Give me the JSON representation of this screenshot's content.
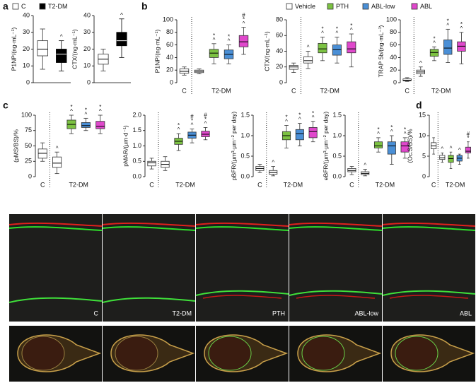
{
  "panels": [
    "a",
    "b",
    "c",
    "d"
  ],
  "legend_a": [
    {
      "name": "C",
      "color": "#ffffff"
    },
    {
      "name": "T2-DM",
      "color": "#000000"
    }
  ],
  "legend_b": [
    {
      "name": "Vehicle",
      "color": "#ffffff"
    },
    {
      "name": "PTH",
      "color": "#7cc242"
    },
    {
      "name": "ABL-low",
      "color": "#4a8fd6"
    },
    {
      "name": "ABL",
      "color": "#e048cc"
    }
  ],
  "chart_data": [
    {
      "type": "box",
      "ylabel": "P1NP/(ng·mL⁻¹)",
      "ylim": [
        0,
        40
      ],
      "yticks": [
        0,
        10,
        20,
        30,
        40
      ],
      "series": [
        {
          "color": "#ffffff",
          "stats": [
            8,
            16,
            20,
            25,
            32
          ],
          "marks": []
        },
        {
          "color": "#000000",
          "stats": [
            7,
            12,
            17,
            20,
            25
          ],
          "marks": [
            "^"
          ]
        }
      ]
    },
    {
      "type": "box",
      "ylabel": "CTX/(ng·mL⁻¹)",
      "ylim": [
        0,
        40
      ],
      "yticks": [
        0,
        10,
        20,
        30,
        40
      ],
      "series": [
        {
          "color": "#ffffff",
          "stats": [
            7,
            11,
            14,
            17,
            20
          ],
          "marks": []
        },
        {
          "color": "#000000",
          "stats": [
            15,
            22,
            25,
            30,
            38
          ],
          "marks": [
            "^"
          ]
        }
      ]
    },
    {
      "type": "box",
      "ylabel": "P1NP/(ng·mL⁻¹)",
      "ylim": [
        0,
        100
      ],
      "yticks": [
        0,
        20,
        40,
        60,
        80,
        100
      ],
      "categories": [
        "C",
        "T2-DM"
      ],
      "series": [
        {
          "category": 0,
          "color": "#ffffff",
          "stats": [
            12,
            15,
            18,
            22,
            25
          ],
          "marks": []
        },
        {
          "category": 1,
          "color": "#ffffff",
          "stats": [
            14,
            16,
            18,
            20,
            22
          ],
          "marks": []
        },
        {
          "category": 1,
          "color": "#7cc242",
          "stats": [
            30,
            40,
            47,
            53,
            62
          ],
          "marks": [
            "^",
            "*"
          ]
        },
        {
          "category": 1,
          "color": "#4a8fd6",
          "stats": [
            30,
            38,
            45,
            52,
            60
          ],
          "marks": [
            "^",
            "*"
          ]
        },
        {
          "category": 1,
          "color": "#e048cc",
          "stats": [
            45,
            57,
            65,
            75,
            88
          ],
          "marks": [
            "^",
            "*",
            "#"
          ]
        }
      ]
    },
    {
      "type": "box",
      "ylabel": "CTX/(ng·mL⁻¹)",
      "ylim": [
        0,
        80
      ],
      "yticks": [
        0,
        20,
        40,
        60,
        80
      ],
      "categories": [
        "C",
        "T2-DM"
      ],
      "series": [
        {
          "category": 0,
          "color": "#ffffff",
          "stats": [
            13,
            17,
            20,
            22,
            25
          ],
          "marks": []
        },
        {
          "category": 1,
          "color": "#ffffff",
          "stats": [
            18,
            25,
            28,
            33,
            40
          ],
          "marks": [
            "^"
          ]
        },
        {
          "category": 1,
          "color": "#7cc242",
          "stats": [
            28,
            38,
            43,
            50,
            58
          ],
          "marks": [
            "^",
            "*"
          ]
        },
        {
          "category": 1,
          "color": "#4a8fd6",
          "stats": [
            25,
            35,
            42,
            48,
            58
          ],
          "marks": [
            "^",
            "*"
          ]
        },
        {
          "category": 1,
          "color": "#e048cc",
          "stats": [
            20,
            38,
            43,
            52,
            62
          ],
          "marks": [
            "^",
            "*"
          ]
        }
      ]
    },
    {
      "type": "box",
      "ylabel": "TRAP 5b/(ng·mL⁻¹)",
      "ylim": [
        0,
        100
      ],
      "yticks": [
        0,
        20,
        40,
        60,
        80,
        100
      ],
      "categories": [
        "C",
        "T2-DM"
      ],
      "series": [
        {
          "category": 0,
          "color": "#ffffff",
          "stats": [
            2,
            3,
            4,
            6,
            8
          ],
          "marks": []
        },
        {
          "category": 1,
          "color": "#ffffff",
          "stats": [
            10,
            14,
            17,
            20,
            25
          ],
          "marks": [
            "^"
          ]
        },
        {
          "category": 1,
          "color": "#7cc242",
          "stats": [
            35,
            42,
            48,
            53,
            57
          ],
          "marks": [
            "^",
            "*"
          ]
        },
        {
          "category": 1,
          "color": "#4a8fd6",
          "stats": [
            32,
            45,
            55,
            68,
            85
          ],
          "marks": [
            "^",
            "*"
          ]
        },
        {
          "category": 1,
          "color": "#e048cc",
          "stats": [
            30,
            50,
            58,
            65,
            80
          ],
          "marks": [
            "^",
            "*"
          ]
        }
      ]
    },
    {
      "type": "box",
      "ylabel": "(pMS/BS)/%",
      "ylim": [
        0,
        100
      ],
      "yticks": [
        0,
        25,
        50,
        75,
        100
      ],
      "categories": [
        "C",
        "T2-DM"
      ],
      "series": [
        {
          "category": 0,
          "color": "#ffffff",
          "stats": [
            25,
            30,
            38,
            45,
            55
          ],
          "marks": []
        },
        {
          "category": 1,
          "color": "#ffffff",
          "stats": [
            5,
            15,
            22,
            32,
            40
          ],
          "marks": [
            "^"
          ]
        },
        {
          "category": 1,
          "color": "#7cc242",
          "stats": [
            70,
            78,
            85,
            92,
            100
          ],
          "marks": [
            "^",
            "*"
          ]
        },
        {
          "category": 1,
          "color": "#4a8fd6",
          "stats": [
            75,
            80,
            83,
            88,
            95
          ],
          "marks": [
            "^",
            "*"
          ]
        },
        {
          "category": 1,
          "color": "#e048cc",
          "stats": [
            70,
            78,
            82,
            90,
            100
          ],
          "marks": [
            "^",
            "*"
          ]
        }
      ]
    },
    {
      "type": "box",
      "ylabel": "pMAR/(µm·d⁻¹)",
      "ylim": [
        0,
        2
      ],
      "yticks": [
        {
          "value": 0,
          "label": "0.0"
        },
        0.5,
        {
          "value": 1,
          "label": "1.0"
        },
        1.5,
        {
          "value": 2,
          "label": "2.0"
        }
      ],
      "categories": [
        "C",
        "T2-DM"
      ],
      "series": [
        {
          "category": 0,
          "color": "#ffffff",
          "stats": [
            0.25,
            0.35,
            0.45,
            0.5,
            0.6
          ],
          "marks": []
        },
        {
          "category": 1,
          "color": "#ffffff",
          "stats": [
            0.2,
            0.3,
            0.4,
            0.5,
            0.65
          ],
          "marks": []
        },
        {
          "category": 1,
          "color": "#7cc242",
          "stats": [
            0.85,
            1.05,
            1.15,
            1.25,
            1.4
          ],
          "marks": [
            "^",
            "*"
          ]
        },
        {
          "category": 1,
          "color": "#4a8fd6",
          "stats": [
            1.1,
            1.25,
            1.35,
            1.45,
            1.55
          ],
          "marks": [
            "^",
            "*",
            "#"
          ]
        },
        {
          "category": 1,
          "color": "#e048cc",
          "stats": [
            1.2,
            1.3,
            1.38,
            1.48,
            1.6
          ],
          "marks": [
            "^",
            "*",
            "#"
          ]
        }
      ]
    },
    {
      "type": "box",
      "ylabel": "pBFR/(µm³·µm⁻² per day)",
      "ylim": [
        0,
        1.5
      ],
      "yticks": [
        {
          "value": 0,
          "label": "0.0"
        },
        0.5,
        {
          "value": 1,
          "label": "1.0"
        },
        1.5
      ],
      "categories": [
        "C",
        "T2-DM"
      ],
      "series": [
        {
          "category": 0,
          "color": "#ffffff",
          "stats": [
            0.1,
            0.15,
            0.2,
            0.25,
            0.3
          ],
          "marks": []
        },
        {
          "category": 1,
          "color": "#ffffff",
          "stats": [
            0.02,
            0.06,
            0.1,
            0.15,
            0.25
          ],
          "marks": [
            "^"
          ]
        },
        {
          "category": 1,
          "color": "#7cc242",
          "stats": [
            0.7,
            0.9,
            1.0,
            1.1,
            1.25
          ],
          "marks": [
            "^",
            "*"
          ]
        },
        {
          "category": 1,
          "color": "#4a8fd6",
          "stats": [
            0.75,
            0.9,
            1.05,
            1.15,
            1.3
          ],
          "marks": [
            "^",
            "*"
          ]
        },
        {
          "category": 1,
          "color": "#e048cc",
          "stats": [
            0.85,
            0.95,
            1.1,
            1.2,
            1.35
          ],
          "marks": [
            "^",
            "*"
          ]
        }
      ]
    },
    {
      "type": "box",
      "ylabel": "eBFR/(µm³·µm⁻² per day)",
      "ylim": [
        0,
        1.5
      ],
      "yticks": [
        {
          "value": 0,
          "label": "0.0"
        },
        0.5,
        {
          "value": 1,
          "label": "1.0"
        },
        1.5
      ],
      "categories": [
        "C",
        "T2-DM"
      ],
      "series": [
        {
          "category": 0,
          "color": "#ffffff",
          "stats": [
            0.05,
            0.12,
            0.15,
            0.2,
            0.25
          ],
          "marks": []
        },
        {
          "category": 1,
          "color": "#ffffff",
          "stats": [
            0.02,
            0.05,
            0.08,
            0.12,
            0.18
          ],
          "marks": [
            "^"
          ]
        },
        {
          "category": 1,
          "color": "#7cc242",
          "stats": [
            0.6,
            0.7,
            0.75,
            0.85,
            0.95
          ],
          "marks": [
            "^",
            "*"
          ]
        },
        {
          "category": 1,
          "color": "#4a8fd6",
          "stats": [
            0.3,
            0.55,
            0.75,
            0.85,
            1.0
          ],
          "marks": [
            "^",
            "*"
          ]
        },
        {
          "category": 1,
          "color": "#e048cc",
          "stats": [
            0.45,
            0.6,
            0.75,
            0.85,
            0.95
          ],
          "marks": [
            "^",
            "*"
          ]
        }
      ]
    },
    {
      "type": "box",
      "ylabel": "(Oc.S/BS)/%",
      "ylim": [
        0,
        15
      ],
      "yticks": [
        0,
        5,
        10,
        15
      ],
      "categories": [
        "C",
        "T2-DM"
      ],
      "series": [
        {
          "category": 0,
          "color": "#ffffff",
          "stats": [
            5.5,
            6.8,
            7.5,
            8.3,
            9.5
          ],
          "marks": []
        },
        {
          "category": 1,
          "color": "#ffffff",
          "stats": [
            3.5,
            4.2,
            4.6,
            5.2,
            5.8
          ],
          "marks": [
            "^"
          ]
        },
        {
          "category": 1,
          "color": "#7cc242",
          "stats": [
            2,
            3.5,
            4.4,
            5.2,
            6
          ],
          "marks": [
            "^"
          ]
        },
        {
          "category": 1,
          "color": "#4a8fd6",
          "stats": [
            3,
            3.8,
            4.5,
            5.2,
            5.5
          ],
          "marks": [
            "^"
          ]
        },
        {
          "category": 1,
          "color": "#e048cc",
          "stats": [
            4.5,
            5.8,
            6.2,
            7.2,
            8.5
          ],
          "marks": [
            "*",
            "#"
          ]
        }
      ]
    }
  ],
  "images": {
    "labels": [
      "C",
      "T2-DM",
      "PTH",
      "ABL-low",
      "ABL"
    ]
  }
}
